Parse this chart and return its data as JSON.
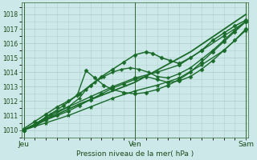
{
  "bg_color": "#cce8e8",
  "grid_color": "#b0d0d0",
  "line_color": "#1a6b2a",
  "xtick_labels": [
    "Jeu",
    "Ven",
    "Sam"
  ],
  "xtick_positions": [
    0.0,
    0.5,
    1.0
  ],
  "xlabel_text": "Pression niveau de la mer( hPa )",
  "ylim": [
    1009.5,
    1018.8
  ],
  "yticks": [
    1010,
    1011,
    1012,
    1013,
    1014,
    1015,
    1016,
    1017,
    1018
  ],
  "series": [
    {
      "x": [
        0.0,
        0.05,
        0.1,
        0.15,
        0.2,
        0.25,
        0.3,
        0.35,
        0.4,
        0.45,
        0.5,
        0.55,
        0.58,
        0.62,
        0.66,
        0.7,
        0.75,
        0.8,
        0.85,
        0.9,
        0.95,
        1.0
      ],
      "y": [
        1010.1,
        1010.6,
        1011.1,
        1011.6,
        1012.0,
        1012.5,
        1013.1,
        1013.7,
        1014.2,
        1014.7,
        1015.2,
        1015.4,
        1015.3,
        1015.0,
        1014.8,
        1014.6,
        1015.0,
        1015.5,
        1016.2,
        1016.7,
        1017.2,
        1017.6
      ],
      "marker": "D",
      "ms": 2.5,
      "lw": 1.1
    },
    {
      "x": [
        0.0,
        0.05,
        0.1,
        0.15,
        0.2,
        0.25,
        0.28,
        0.32,
        0.36,
        0.4,
        0.44,
        0.48,
        0.52,
        0.56,
        0.6,
        0.65,
        0.7,
        0.75,
        0.8,
        0.85,
        0.9,
        0.95,
        1.0
      ],
      "y": [
        1010.0,
        1010.4,
        1010.9,
        1011.3,
        1011.6,
        1012.2,
        1012.8,
        1013.3,
        1013.7,
        1014.0,
        1014.2,
        1014.3,
        1014.2,
        1014.0,
        1013.7,
        1013.6,
        1013.9,
        1014.3,
        1014.9,
        1015.5,
        1016.2,
        1016.9,
        1017.5
      ],
      "marker": "P",
      "ms": 2.5,
      "lw": 1.0
    },
    {
      "x": [
        0.0,
        0.05,
        0.1,
        0.15,
        0.2,
        0.25,
        0.3,
        0.35,
        0.4,
        0.45,
        0.5,
        0.55,
        0.6,
        0.65,
        0.7,
        0.75,
        0.8,
        0.85,
        0.9,
        0.95,
        1.0
      ],
      "y": [
        1010.0,
        1010.3,
        1010.7,
        1011.0,
        1011.3,
        1011.7,
        1012.1,
        1012.5,
        1012.9,
        1013.2,
        1013.5,
        1013.7,
        1013.5,
        1013.3,
        1013.4,
        1013.7,
        1014.2,
        1014.8,
        1015.5,
        1016.2,
        1017.0
      ],
      "marker": "D",
      "ms": 2.5,
      "lw": 1.0
    },
    {
      "x": [
        0.0,
        0.1,
        0.2,
        0.3,
        0.4,
        0.5,
        0.6,
        0.7,
        0.8,
        0.9,
        1.0
      ],
      "y": [
        1010.0,
        1010.8,
        1011.6,
        1012.3,
        1013.0,
        1013.6,
        1014.0,
        1014.5,
        1015.5,
        1016.5,
        1017.5
      ],
      "marker": "D",
      "ms": 2.5,
      "lw": 1.0
    },
    {
      "x": [
        0.0,
        0.1,
        0.2,
        0.3,
        0.4,
        0.5,
        0.6,
        0.7,
        0.8,
        0.9,
        1.0
      ],
      "y": [
        1010.0,
        1010.5,
        1011.0,
        1011.6,
        1012.2,
        1012.7,
        1013.1,
        1013.6,
        1014.5,
        1015.5,
        1016.9
      ],
      "marker": "*",
      "ms": 3.5,
      "lw": 1.0
    },
    {
      "x": [
        0.0,
        0.06,
        0.12,
        0.18,
        0.24,
        0.28,
        0.32,
        0.36,
        0.4,
        0.45,
        0.5,
        0.55,
        0.6,
        0.65,
        0.7,
        0.75,
        0.8,
        0.85,
        0.9,
        0.95,
        1.0
      ],
      "y": [
        1010.0,
        1010.5,
        1011.1,
        1011.7,
        1012.4,
        1014.1,
        1013.6,
        1013.1,
        1012.8,
        1012.6,
        1012.5,
        1012.6,
        1012.8,
        1013.1,
        1013.5,
        1014.0,
        1014.7,
        1015.4,
        1016.1,
        1016.8,
        1017.5
      ],
      "marker": "D",
      "ms": 2.5,
      "lw": 1.0
    },
    {
      "x": [
        0.0,
        0.25,
        0.5,
        0.75,
        1.0
      ],
      "y": [
        1010.0,
        1011.8,
        1013.3,
        1015.4,
        1018.0
      ],
      "marker": "None",
      "ms": 0,
      "lw": 1.3
    }
  ]
}
